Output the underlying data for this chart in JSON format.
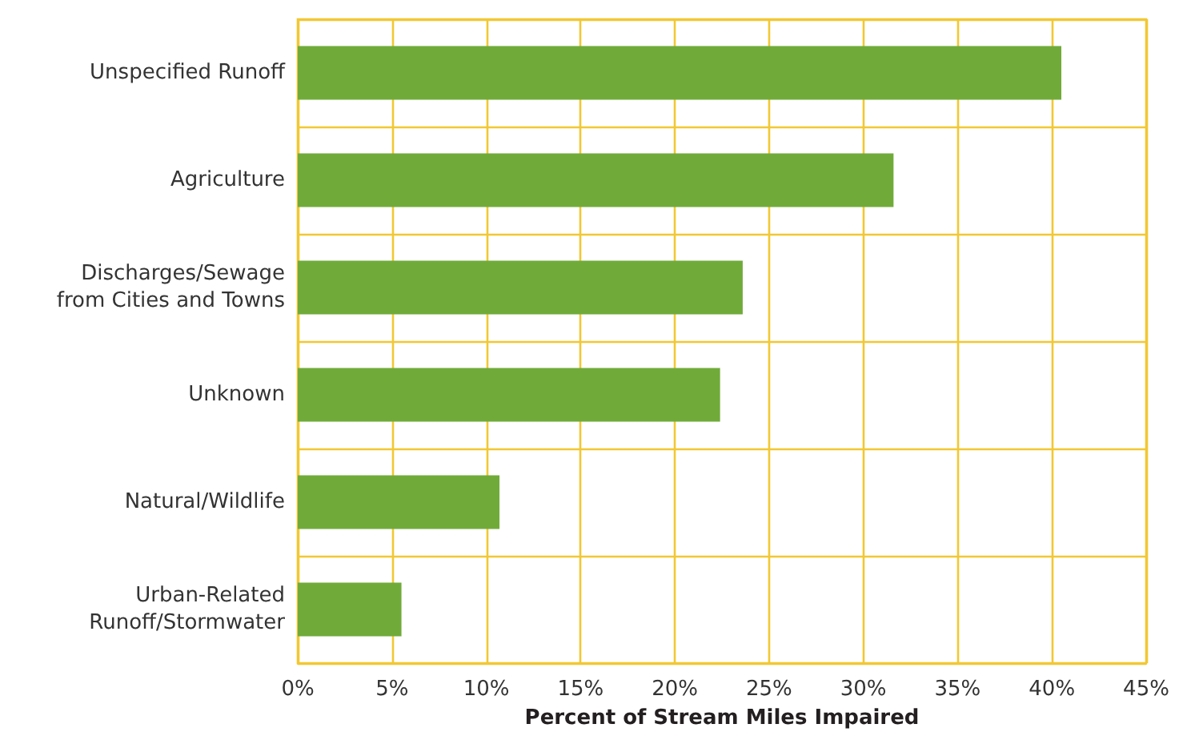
{
  "chart_data": {
    "type": "bar",
    "orientation": "horizontal",
    "xlabel": "Percent of Stream Miles Impaired",
    "categories": [
      "Unspecified Runoff",
      "Agriculture",
      "Discharges/Sewage\nfrom Cities and Towns",
      "Unknown",
      "Natural/Wildlife",
      "Urban-Related\nRunoff/Stormwater"
    ],
    "values": [
      40.5,
      31.6,
      23.6,
      22.4,
      10.7,
      5.5
    ],
    "color": "#70ab3a",
    "xlim": [
      0,
      45
    ],
    "xticks": [
      {
        "value": 0,
        "label": "0%"
      },
      {
        "value": 5,
        "label": "5%"
      },
      {
        "value": 10,
        "label": "10%"
      },
      {
        "value": 15,
        "label": "15%"
      },
      {
        "value": 20,
        "label": "20%"
      },
      {
        "value": 25,
        "label": "25%"
      },
      {
        "value": 30,
        "label": "30%"
      },
      {
        "value": 35,
        "label": "35%"
      },
      {
        "value": 40,
        "label": "40%"
      },
      {
        "value": 45,
        "label": "45%"
      }
    ],
    "grid": true
  }
}
